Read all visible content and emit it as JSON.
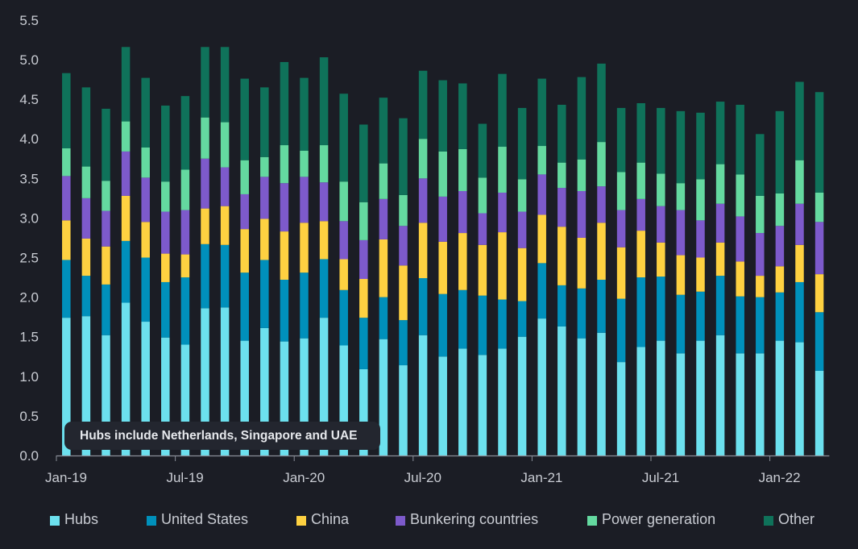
{
  "chart_data": {
    "type": "bar",
    "stacked": true,
    "title": "",
    "xlabel": "",
    "ylabel": "",
    "ylim": [
      0,
      5.5
    ],
    "yticks": [
      "0.0",
      "0.5",
      "1.0",
      "1.5",
      "2.0",
      "2.5",
      "3.0",
      "3.5",
      "4.0",
      "4.5",
      "5.0",
      "5.5"
    ],
    "grid": false,
    "legend_position": "bottom",
    "categories": [
      "Jan-19",
      "Feb-19",
      "Mar-19",
      "Apr-19",
      "May-19",
      "Jun-19",
      "Jul-19",
      "Aug-19",
      "Sep-19",
      "Oct-19",
      "Nov-19",
      "Dec-19",
      "Jan-20",
      "Feb-20",
      "Mar-20",
      "Apr-20",
      "May-20",
      "Jun-20",
      "Jul-20",
      "Aug-20",
      "Sep-20",
      "Oct-20",
      "Nov-20",
      "Dec-20",
      "Jan-21",
      "Feb-21",
      "Mar-21",
      "Apr-21",
      "May-21",
      "Jun-21",
      "Jul-21",
      "Aug-21",
      "Sep-21",
      "Oct-21",
      "Nov-21",
      "Dec-21",
      "Jan-22",
      "Feb-22",
      "Mar-22"
    ],
    "xtick_labels": [
      {
        "label": "Jan-19",
        "index": 0
      },
      {
        "label": "Jul-19",
        "index": 6
      },
      {
        "label": "Jan-20",
        "index": 12
      },
      {
        "label": "Jul-20",
        "index": 18
      },
      {
        "label": "Jan-21",
        "index": 24
      },
      {
        "label": "Jul-21",
        "index": 30
      },
      {
        "label": "Jan-22",
        "index": 36
      }
    ],
    "series": [
      {
        "name": "Hubs",
        "color": "#6ce0ee",
        "values": [
          1.74,
          1.76,
          1.52,
          1.93,
          1.69,
          1.49,
          1.4,
          1.86,
          1.87,
          1.45,
          1.61,
          1.44,
          1.48,
          1.74,
          1.39,
          1.09,
          1.47,
          1.14,
          1.52,
          1.25,
          1.35,
          1.27,
          1.35,
          1.5,
          1.73,
          1.63,
          1.48,
          1.55,
          1.18,
          1.37,
          1.45,
          1.29,
          1.45,
          1.52,
          1.29,
          1.29,
          1.45,
          1.43,
          1.07
        ]
      },
      {
        "name": "United States",
        "color": "#0090bb",
        "values": [
          0.73,
          0.51,
          0.64,
          0.78,
          0.81,
          0.7,
          0.85,
          0.81,
          0.79,
          0.86,
          0.86,
          0.78,
          0.83,
          0.74,
          0.7,
          0.65,
          0.53,
          0.57,
          0.72,
          0.79,
          0.74,
          0.75,
          0.62,
          0.45,
          0.7,
          0.52,
          0.63,
          0.67,
          0.8,
          0.88,
          0.81,
          0.74,
          0.62,
          0.75,
          0.72,
          0.71,
          0.61,
          0.76,
          0.74
        ]
      },
      {
        "name": "China",
        "color": "#fed141",
        "values": [
          0.5,
          0.47,
          0.48,
          0.57,
          0.45,
          0.36,
          0.29,
          0.45,
          0.49,
          0.55,
          0.52,
          0.61,
          0.63,
          0.48,
          0.39,
          0.49,
          0.73,
          0.69,
          0.7,
          0.66,
          0.72,
          0.64,
          0.85,
          0.67,
          0.61,
          0.74,
          0.64,
          0.72,
          0.65,
          0.59,
          0.43,
          0.5,
          0.43,
          0.42,
          0.44,
          0.27,
          0.33,
          0.47,
          0.48
        ]
      },
      {
        "name": "Bunkering countries",
        "color": "#7d5acb",
        "values": [
          0.56,
          0.51,
          0.45,
          0.56,
          0.56,
          0.53,
          0.56,
          0.63,
          0.49,
          0.44,
          0.53,
          0.61,
          0.58,
          0.49,
          0.48,
          0.49,
          0.51,
          0.5,
          0.56,
          0.57,
          0.53,
          0.4,
          0.5,
          0.46,
          0.51,
          0.49,
          0.59,
          0.46,
          0.47,
          0.4,
          0.46,
          0.57,
          0.47,
          0.49,
          0.57,
          0.54,
          0.51,
          0.52,
          0.66
        ]
      },
      {
        "name": "Power generation",
        "color": "#64d9a0",
        "values": [
          0.35,
          0.4,
          0.38,
          0.38,
          0.38,
          0.38,
          0.51,
          0.52,
          0.57,
          0.43,
          0.25,
          0.48,
          0.33,
          0.47,
          0.5,
          0.48,
          0.45,
          0.39,
          0.5,
          0.57,
          0.53,
          0.45,
          0.58,
          0.41,
          0.36,
          0.32,
          0.4,
          0.56,
          0.48,
          0.46,
          0.41,
          0.34,
          0.52,
          0.5,
          0.53,
          0.47,
          0.41,
          0.55,
          0.37
        ]
      },
      {
        "name": "Other",
        "color": "#0f725a",
        "values": [
          0.95,
          1.0,
          0.91,
          0.94,
          0.88,
          0.96,
          0.93,
          0.89,
          0.95,
          1.03,
          0.88,
          1.05,
          0.92,
          1.11,
          1.11,
          0.98,
          0.83,
          0.97,
          0.86,
          0.9,
          0.83,
          0.68,
          0.92,
          0.9,
          0.85,
          0.73,
          1.04,
          0.99,
          0.81,
          0.75,
          0.83,
          0.91,
          0.84,
          0.79,
          0.88,
          0.78,
          1.04,
          0.99,
          1.27
        ]
      }
    ],
    "annotation": "Hubs include Netherlands, Singapore and UAE"
  },
  "colors": {
    "background": "#1b1d25",
    "axis": "#8a8e98",
    "text": "#c9ccd3",
    "annotation_bg": "#23262f"
  }
}
